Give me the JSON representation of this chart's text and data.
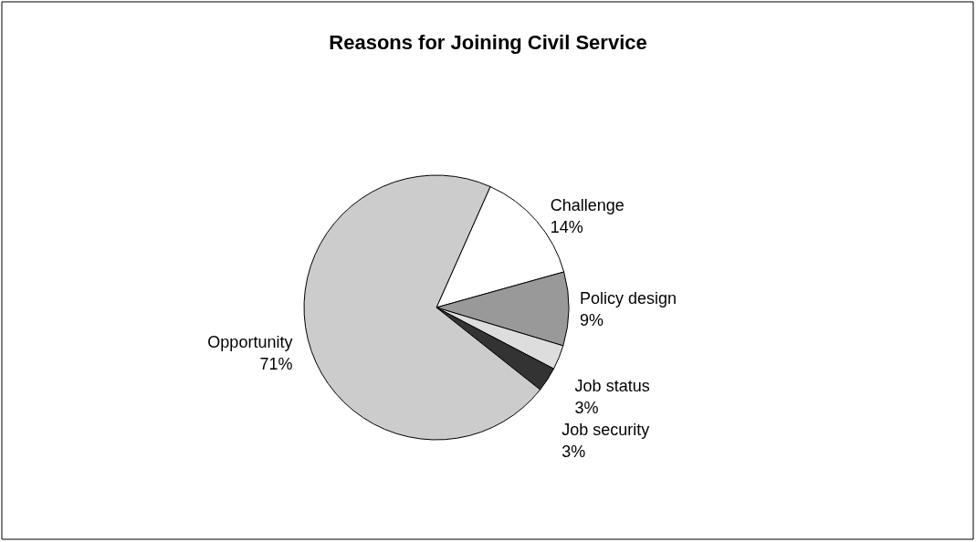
{
  "chart_data": {
    "type": "pie",
    "title": "Reasons for Joining Civil Service",
    "categories": [
      "Challenge",
      "Policy design",
      "Job status",
      "Job security",
      "Opportunity"
    ],
    "values": [
      14,
      9,
      3,
      3,
      71
    ],
    "value_labels": [
      "14%",
      "9%",
      "3%",
      "3%",
      "71%"
    ],
    "colors": [
      "#ffffff",
      "#999999",
      "#dddddd",
      "#333333",
      "#cccccc"
    ],
    "legend": false
  }
}
